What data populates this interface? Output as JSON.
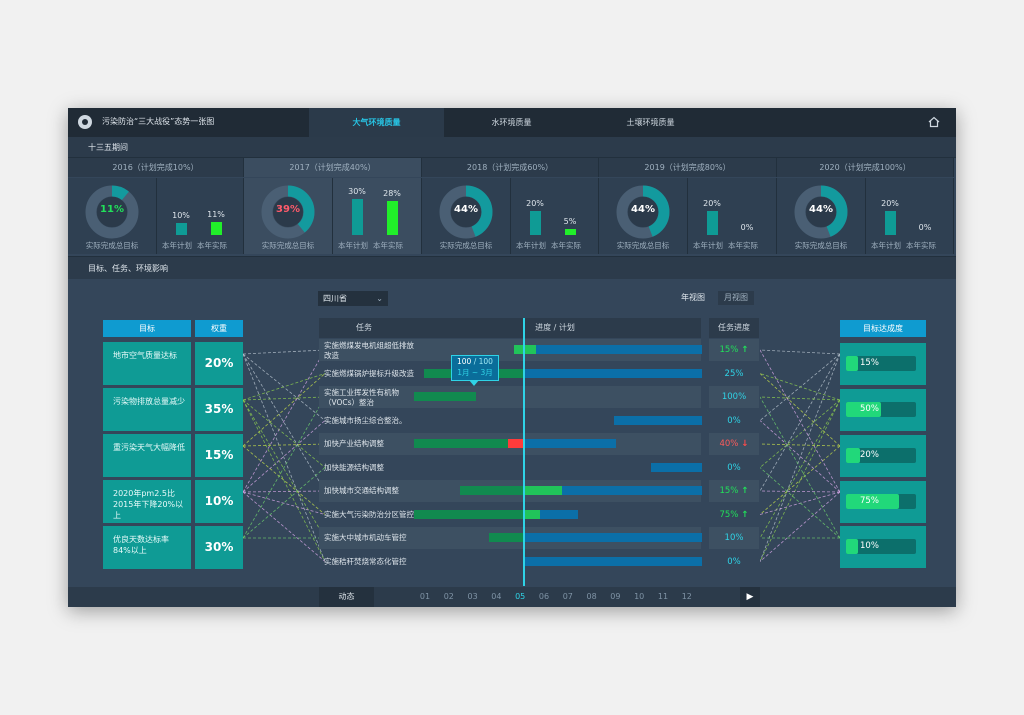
{
  "app": {
    "title": "污染防治“三大战役”态势一张图"
  },
  "tabs": [
    {
      "label": "大气环境质量",
      "active": true
    },
    {
      "label": "水环境质量",
      "active": false
    },
    {
      "label": "土壤环境质量",
      "active": false
    }
  ],
  "period": {
    "label": "十三五期间"
  },
  "years": [
    {
      "header": "2016（计划完成10%）",
      "donut_value": "11%",
      "donut_frac": 0.11,
      "donut_color": "#21e05a",
      "donut_label": "实际完成总目标",
      "plan": "10%",
      "plan_frac": 0.1,
      "actual": "11%",
      "actual_frac": 0.11,
      "plan_label": "本年计划",
      "actual_label": "本年实际"
    },
    {
      "header": "2017（计划完成40%）",
      "donut_value": "39%",
      "donut_frac": 0.39,
      "donut_color": "#ff5b6b",
      "donut_label": "实际完成总目标",
      "plan": "30%",
      "plan_frac": 0.3,
      "actual": "28%",
      "actual_frac": 0.28,
      "plan_label": "本年计划",
      "actual_label": "本年实际"
    },
    {
      "header": "2018（计划完成60%）",
      "donut_value": "44%",
      "donut_frac": 0.44,
      "donut_color": "#ffffff",
      "donut_label": "实际完成总目标",
      "plan": "20%",
      "plan_frac": 0.2,
      "actual": "5%",
      "actual_frac": 0.05,
      "plan_label": "本年计划",
      "actual_label": "本年实际"
    },
    {
      "header": "2019（计划完成80%）",
      "donut_value": "44%",
      "donut_frac": 0.44,
      "donut_color": "#ffffff",
      "donut_label": "实际完成总目标",
      "plan": "20%",
      "plan_frac": 0.2,
      "actual": "0%",
      "actual_frac": 0.0,
      "plan_label": "本年计划",
      "actual_label": "本年实际"
    },
    {
      "header": "2020（计划完成100%）",
      "donut_value": "44%",
      "donut_frac": 0.44,
      "donut_color": "#ffffff",
      "donut_label": "实际完成总目标",
      "plan": "20%",
      "plan_frac": 0.2,
      "actual": "0%",
      "actual_frac": 0.0,
      "plan_label": "本年计划",
      "actual_label": "本年实际"
    }
  ],
  "section2": {
    "label": "目标、任务、环境影响"
  },
  "region_select": {
    "value": "四川省"
  },
  "views": {
    "year": "年视图",
    "month": "月视图"
  },
  "goals": {
    "title": "目标",
    "weight_title": "权重",
    "items": [
      {
        "label": "地市空气质量达标",
        "weight": "20%"
      },
      {
        "label": "污染物排放总量减少",
        "weight": "35%"
      },
      {
        "label": "重污染天气大幅降低",
        "weight": "15%"
      },
      {
        "label": "2020年pm2.5比2015年下降20%以上",
        "weight": "10%"
      },
      {
        "label": "优良天数达标率84%以上",
        "weight": "30%"
      }
    ]
  },
  "tasks": {
    "col_task": "任务",
    "col_progress": "进度 / 计划",
    "col_status": "任务进度",
    "items": [
      {
        "name": "实施燃煤发电机组超低排放改造",
        "progress": "15%",
        "trend": "up"
      },
      {
        "name": "实施燃煤锅炉提标升级改造",
        "progress": "25%",
        "trend": ""
      },
      {
        "name": "实施工业挥发性有机物（VOCs）整治",
        "progress": "100%",
        "trend": ""
      },
      {
        "name": "实施城市扬尘综合整治。",
        "progress": "0%",
        "trend": ""
      },
      {
        "name": "加快产业结构调整",
        "progress": "40%",
        "trend": "down"
      },
      {
        "name": "加快能源结构调整",
        "progress": "0%",
        "trend": ""
      },
      {
        "name": "加快城市交通结构调整",
        "progress": "15%",
        "trend": "up"
      },
      {
        "name": "实施大气污染防治分区管控",
        "progress": "75%",
        "trend": "up"
      },
      {
        "name": "实施大中城市机动车管控",
        "progress": "10%",
        "trend": ""
      },
      {
        "name": "实施秸秆焚烧常态化管控",
        "progress": "0%",
        "trend": ""
      }
    ]
  },
  "tooltip": {
    "value": "100",
    "sep": " / ",
    "plan": "100",
    "range": "1月 ~ 3月"
  },
  "achievement": {
    "title": "目标达成度",
    "items": [
      {
        "value": "15%",
        "frac": 0.15
      },
      {
        "value": "50%",
        "frac": 0.5
      },
      {
        "value": "20%",
        "frac": 0.2
      },
      {
        "value": "75%",
        "frac": 0.75
      },
      {
        "value": "10%",
        "frac": 0.1
      }
    ]
  },
  "timeline": {
    "label": "动态",
    "months": [
      "01",
      "02",
      "03",
      "04",
      "05",
      "06",
      "07",
      "08",
      "09",
      "10",
      "11",
      "12"
    ],
    "active": "05"
  },
  "colors": {
    "accent": "#27c6e6",
    "teal": "#0f9b95",
    "blue": "#0f9bd0",
    "green": "#21d87a",
    "red": "#ff4b4b"
  }
}
